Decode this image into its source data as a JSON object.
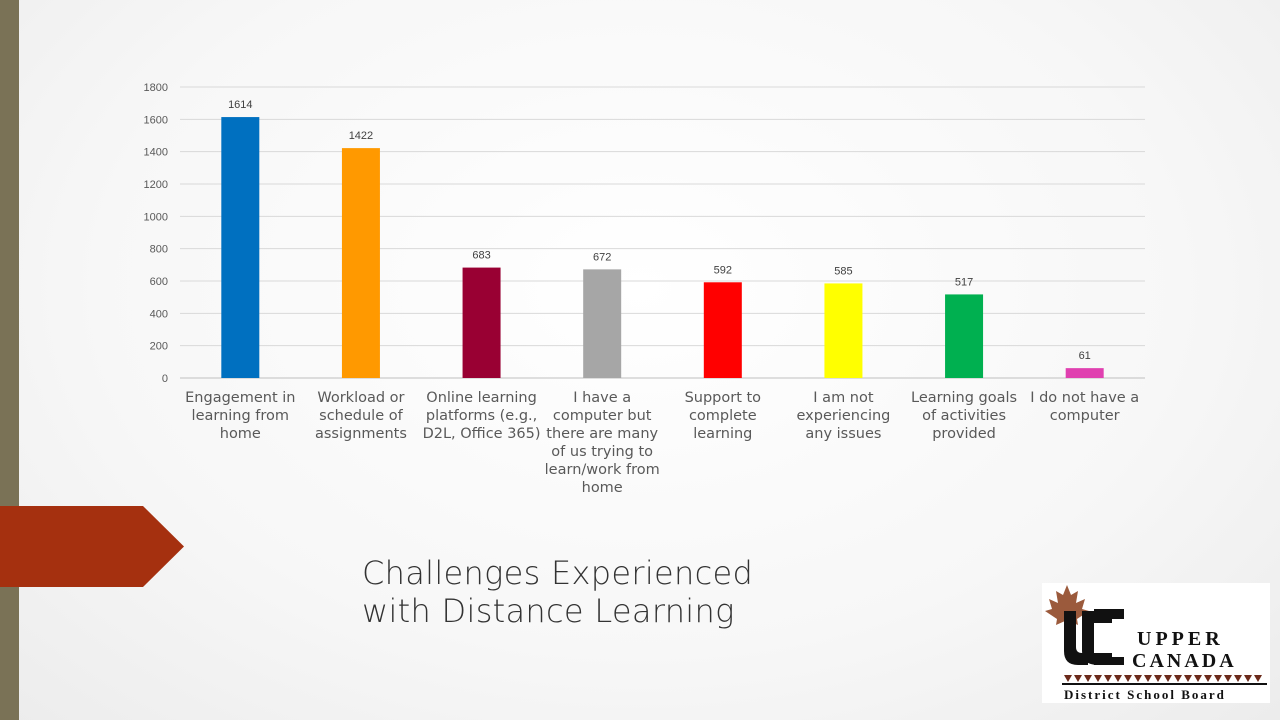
{
  "slide": {
    "title_line1": "Challenges Experienced",
    "title_line2": "with Distance Learning"
  },
  "logo": {
    "text_line1": "UPPER",
    "text_line2": "CANADA",
    "text_line3": "District School Board",
    "monogram": "UC"
  },
  "colors": {
    "side_bar": "#7a7256",
    "arrow": "#a5300f"
  },
  "chart_data": {
    "type": "bar",
    "title": "",
    "xlabel": "",
    "ylabel": "",
    "ylim": [
      0,
      1800
    ],
    "yticks": [
      0,
      200,
      400,
      600,
      800,
      1000,
      1200,
      1400,
      1600,
      1800
    ],
    "grid": true,
    "categories": [
      [
        "Engagement in",
        "learning from",
        "home"
      ],
      [
        "Workload or",
        "schedule of",
        "assignments"
      ],
      [
        "Online learning",
        "platforms (e.g.,",
        "D2L, Office 365)"
      ],
      [
        "I have a",
        "computer but",
        "there are many",
        "of us trying to",
        "learn/work from",
        "home"
      ],
      [
        "Support to",
        "complete",
        "learning"
      ],
      [
        "I am not",
        "experiencing",
        "any issues"
      ],
      [
        "Learning goals",
        "of activities",
        "provided"
      ],
      [
        "I do not have a",
        "computer"
      ]
    ],
    "values": [
      1614,
      1422,
      683,
      672,
      592,
      585,
      517,
      61
    ],
    "bar_colors": [
      "#0070c0",
      "#ff9900",
      "#990033",
      "#a6a6a6",
      "#ff0000",
      "#ffff00",
      "#00b050",
      "#e040b0"
    ]
  }
}
